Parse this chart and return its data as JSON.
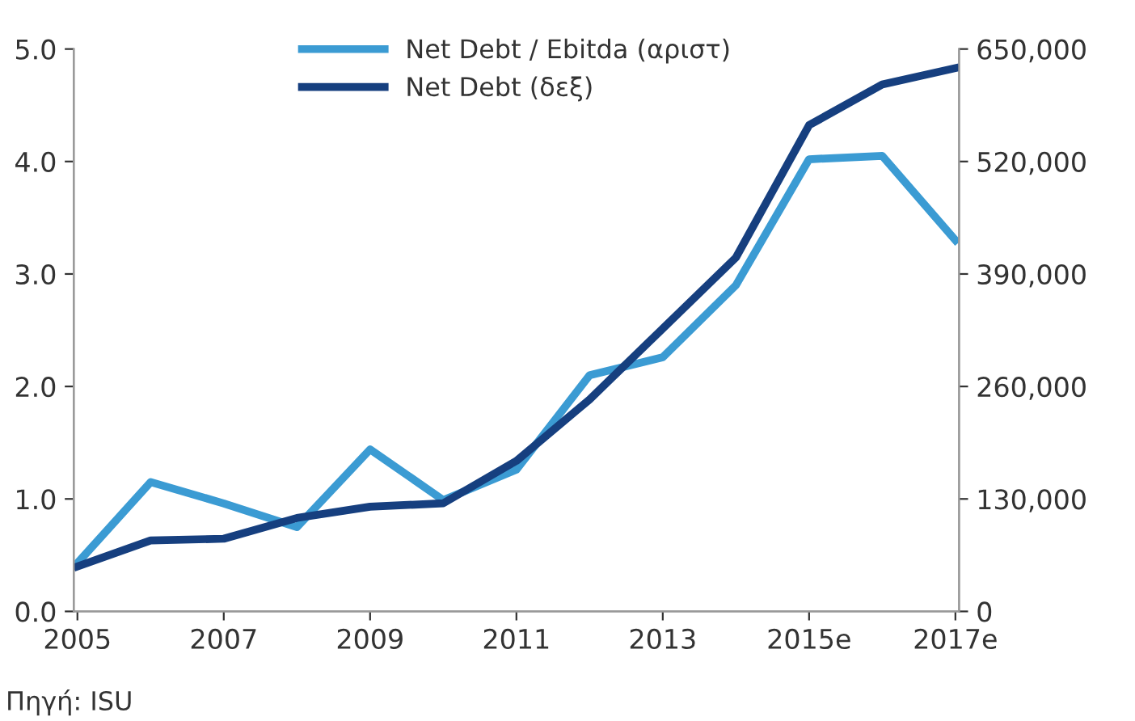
{
  "chart_data": {
    "type": "line",
    "categories": [
      "2005",
      null,
      "2007",
      null,
      "2009",
      null,
      "2011",
      null,
      "2013",
      null,
      "2015e",
      null,
      "2017e"
    ],
    "series": [
      {
        "name": "Net Debt / Ebitda (αριστ)",
        "color": "#3b9bd3",
        "values": [
          0.43,
          1.15,
          0.96,
          0.75,
          1.44,
          0.99,
          1.26,
          2.1,
          2.26,
          2.9,
          4.02,
          4.05,
          3.3
        ]
      },
      {
        "name": "Net Debt (δεξ)",
        "color": "#163f7f",
        "axis": "y2",
        "values": [
          52000,
          82000,
          84000,
          108000,
          121000,
          125000,
          174000,
          245000,
          327000,
          409000,
          562000,
          609000,
          628000
        ]
      }
    ],
    "ylim": [
      0,
      5
    ],
    "yticks": [
      {
        "value": 0,
        "label": "0.0"
      },
      {
        "value": 1,
        "label": "1.0"
      },
      {
        "value": 2,
        "label": "2.0"
      },
      {
        "value": 3,
        "label": "3.0"
      },
      {
        "value": 4,
        "label": "4.0"
      },
      {
        "value": 5,
        "label": "5.0"
      }
    ],
    "y2lim": [
      0,
      650000
    ],
    "y2ticks": [
      0,
      {
        "value": 130000,
        "label": "130,000"
      },
      {
        "value": 260000,
        "label": "260,000"
      },
      {
        "value": 390000,
        "label": "390,000"
      },
      {
        "value": 520000,
        "label": "520,000"
      },
      {
        "value": 650000,
        "label": "650,000"
      }
    ],
    "legend": "top",
    "grid": false,
    "marker": "none",
    "line_style": "solid",
    "annotations": [
      "Πηγή: ISU"
    ]
  }
}
